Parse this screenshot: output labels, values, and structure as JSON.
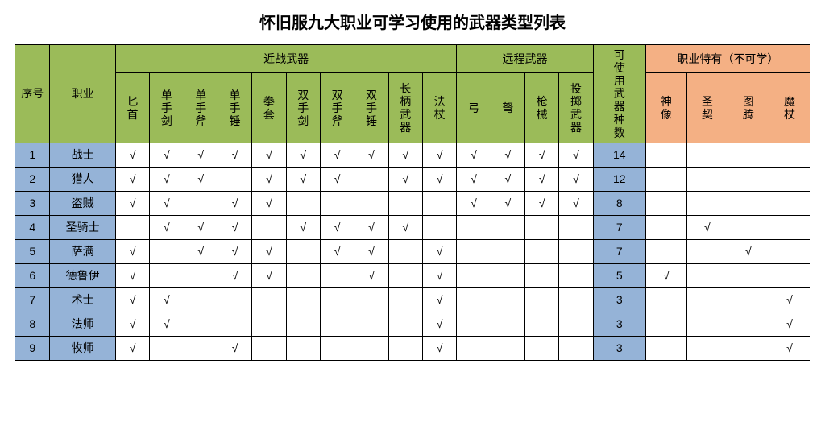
{
  "title": "怀旧服九大职业可学习使用的武器类型列表",
  "colors": {
    "header_green": "#9bbb59",
    "header_orange": "#f4b084",
    "cell_blue": "#95b3d7",
    "border": "#000000",
    "background": "#ffffff",
    "text": "#000000"
  },
  "typography": {
    "title_fontsize_pt": 15,
    "body_fontsize_pt": 10.5,
    "font_family": "Microsoft YaHei / SimSun"
  },
  "headers": {
    "index": "序号",
    "class": "职业",
    "melee_group": "近战武器",
    "ranged_group": "远程武器",
    "count": "可使用武器种数",
    "special_group": "职业特有（不可学）",
    "melee": [
      "匕首",
      "单手剑",
      "单手斧",
      "单手锤",
      "拳套",
      "双手剑",
      "双手斧",
      "双手锤",
      "长柄武器",
      "法杖"
    ],
    "ranged": [
      "弓",
      "弩",
      "枪械",
      "投掷武器"
    ],
    "special": [
      "神像",
      "圣契",
      "图腾",
      "魔杖"
    ]
  },
  "check": "√",
  "rows": [
    {
      "idx": "1",
      "class": "战士",
      "melee": [
        1,
        1,
        1,
        1,
        1,
        1,
        1,
        1,
        1,
        1
      ],
      "ranged": [
        1,
        1,
        1,
        1
      ],
      "count": "14",
      "special": [
        0,
        0,
        0,
        0
      ]
    },
    {
      "idx": "2",
      "class": "猎人",
      "melee": [
        1,
        1,
        1,
        0,
        1,
        1,
        1,
        0,
        1,
        1
      ],
      "ranged": [
        1,
        1,
        1,
        1
      ],
      "count": "12",
      "special": [
        0,
        0,
        0,
        0
      ]
    },
    {
      "idx": "3",
      "class": "盗贼",
      "melee": [
        1,
        1,
        0,
        1,
        1,
        0,
        0,
        0,
        0,
        0
      ],
      "ranged": [
        1,
        1,
        1,
        1
      ],
      "count": "8",
      "special": [
        0,
        0,
        0,
        0
      ]
    },
    {
      "idx": "4",
      "class": "圣骑士",
      "melee": [
        0,
        1,
        1,
        1,
        0,
        1,
        1,
        1,
        1,
        0
      ],
      "ranged": [
        0,
        0,
        0,
        0
      ],
      "count": "7",
      "special": [
        0,
        1,
        0,
        0
      ]
    },
    {
      "idx": "5",
      "class": "萨满",
      "melee": [
        1,
        0,
        1,
        1,
        1,
        0,
        1,
        1,
        0,
        1
      ],
      "ranged": [
        0,
        0,
        0,
        0
      ],
      "count": "7",
      "special": [
        0,
        0,
        1,
        0
      ]
    },
    {
      "idx": "6",
      "class": "德鲁伊",
      "melee": [
        1,
        0,
        0,
        1,
        1,
        0,
        0,
        1,
        0,
        1
      ],
      "ranged": [
        0,
        0,
        0,
        0
      ],
      "count": "5",
      "special": [
        1,
        0,
        0,
        0
      ]
    },
    {
      "idx": "7",
      "class": "术士",
      "melee": [
        1,
        1,
        0,
        0,
        0,
        0,
        0,
        0,
        0,
        1
      ],
      "ranged": [
        0,
        0,
        0,
        0
      ],
      "count": "3",
      "special": [
        0,
        0,
        0,
        1
      ]
    },
    {
      "idx": "8",
      "class": "法师",
      "melee": [
        1,
        1,
        0,
        0,
        0,
        0,
        0,
        0,
        0,
        1
      ],
      "ranged": [
        0,
        0,
        0,
        0
      ],
      "count": "3",
      "special": [
        0,
        0,
        0,
        1
      ]
    },
    {
      "idx": "9",
      "class": "牧师",
      "melee": [
        1,
        0,
        0,
        1,
        0,
        0,
        0,
        0,
        0,
        1
      ],
      "ranged": [
        0,
        0,
        0,
        0
      ],
      "count": "3",
      "special": [
        0,
        0,
        0,
        1
      ]
    }
  ]
}
